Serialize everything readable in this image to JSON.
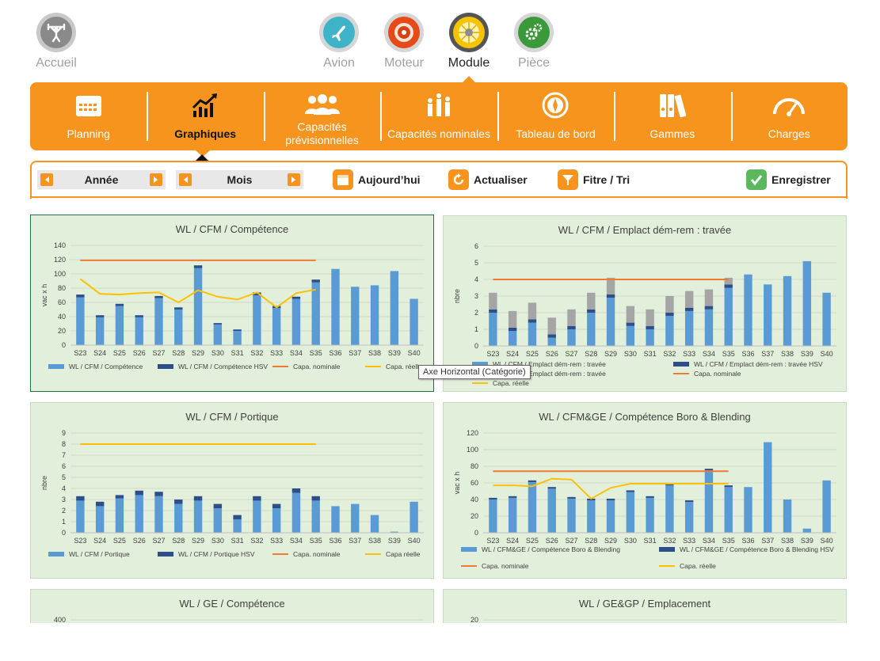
{
  "colors": {
    "accent": "#f7941d",
    "bar_main": "#5b9bd5",
    "bar_hsv": "#2e4e8a",
    "bar_grey": "#a5a5a5",
    "line_nominal": "#ed7d31",
    "line_reelle": "#ffc000",
    "panel_bg": "#e2efda"
  },
  "topnav": {
    "home": {
      "label": "Accueil",
      "icon": "dumbbell-icon"
    },
    "items": [
      {
        "label": "Avion",
        "icon": "airplane-icon",
        "active": false
      },
      {
        "label": "Moteur",
        "icon": "engine-icon",
        "active": false
      },
      {
        "label": "Module",
        "icon": "module-turbine-icon",
        "active": true
      },
      {
        "label": "Pièce",
        "icon": "gears-icon",
        "active": false
      }
    ]
  },
  "module_bar": {
    "items": [
      {
        "label": "Planning",
        "icon": "calendar-icon",
        "active": false
      },
      {
        "label": "Graphiques",
        "icon": "trend-chart-icon",
        "active": true
      },
      {
        "label": "Capacités prévisionnelles",
        "icon": "people-group-icon",
        "active": false
      },
      {
        "label": "Capacités nominales",
        "icon": "people-bar-icon",
        "active": false
      },
      {
        "label": "Tableau de bord",
        "icon": "compass-icon",
        "active": false
      },
      {
        "label": "Gammes",
        "icon": "binders-icon",
        "active": false
      },
      {
        "label": "Charges",
        "icon": "gauge-icon",
        "active": false
      }
    ]
  },
  "toolbar": {
    "year_label": "Année",
    "month_label": "Mois",
    "today_label": "Aujourd’hui",
    "refresh_label": "Actualiser",
    "filter_label": "Fitre / Tri",
    "save_label": "Enregistrer"
  },
  "tooltip": "Axe Horizontal (Catégorie)",
  "chart_data": [
    {
      "type": "bar",
      "title": "WL / CFM / Compétence",
      "ylabel": "vac x h",
      "ylim": [
        0,
        140
      ],
      "yticks": [
        0,
        20,
        40,
        60,
        80,
        100,
        120,
        140
      ],
      "categories": [
        "S23",
        "S24",
        "S25",
        "S26",
        "S27",
        "S28",
        "S29",
        "S30",
        "S31",
        "S32",
        "S33",
        "S34",
        "S35",
        "S36",
        "S37",
        "S38",
        "S39",
        "S40"
      ],
      "stacked": true,
      "series": [
        {
          "name": "WL / CFM / Compétence",
          "kind": "bar",
          "values": [
            67,
            39,
            55,
            39,
            66,
            50,
            108,
            29,
            20,
            70,
            52,
            65,
            88,
            107,
            82,
            84,
            104,
            65
          ]
        },
        {
          "name": "WL / CFM / Compétence HSV",
          "kind": "bar",
          "values": [
            4,
            3,
            3,
            3,
            3,
            3,
            4,
            2,
            2,
            4,
            3,
            3,
            4,
            0,
            0,
            0,
            0,
            0
          ]
        },
        {
          "name": "Capa. nominale",
          "kind": "line",
          "values": [
            119,
            119,
            119,
            119,
            119,
            119,
            119,
            119,
            119,
            119,
            119,
            119,
            119,
            null,
            null,
            null,
            null,
            null
          ]
        },
        {
          "name": "Capa. réelle",
          "kind": "line",
          "values": [
            93,
            72,
            71,
            73,
            74,
            60,
            77,
            68,
            64,
            74,
            53,
            73,
            78,
            null,
            null,
            null,
            null,
            null
          ]
        }
      ],
      "legend": [
        "WL / CFM / Compétence",
        "WL / CFM / Compétence HSV",
        "Capa. nominale",
        "Capa. réelle"
      ]
    },
    {
      "type": "bar",
      "title": "WL / CFM / Emplact dém-rem : travée",
      "ylabel": "nbre",
      "ylim": [
        0,
        6
      ],
      "yticks": [
        0,
        1,
        2,
        3,
        4,
        5,
        6
      ],
      "categories": [
        "S23",
        "S24",
        "S25",
        "S26",
        "S27",
        "S28",
        "S29",
        "S30",
        "S31",
        "S32",
        "S33",
        "S34",
        "S35",
        "S36",
        "S37",
        "S38",
        "S39",
        "S40"
      ],
      "stacked": true,
      "series": [
        {
          "name": "WL / CFM / Emplact dém-rem : travée",
          "kind": "bar",
          "values": [
            2.0,
            0.9,
            1.4,
            0.5,
            1.0,
            2.0,
            2.9,
            1.2,
            1.0,
            1.8,
            2.1,
            2.2,
            3.5,
            4.3,
            3.7,
            4.2,
            5.1,
            3.2
          ]
        },
        {
          "name": "WL / CFM / Emplact dém-rem : travée HSV",
          "kind": "bar",
          "values": [
            0.2,
            0.2,
            0.2,
            0.2,
            0.2,
            0.2,
            0.2,
            0.2,
            0.2,
            0.2,
            0.2,
            0.2,
            0.2,
            0,
            0,
            0,
            0,
            0
          ]
        },
        {
          "name": "",
          "kind": "bar",
          "values": [
            1.0,
            1.0,
            1.0,
            1.0,
            1.0,
            1.0,
            1.0,
            1.0,
            1.0,
            1.0,
            1.0,
            1.0,
            0.4,
            0,
            0,
            0,
            0,
            0
          ]
        },
        {
          "name": "Capa. nominale",
          "kind": "line",
          "values": [
            4,
            4,
            4,
            4,
            4,
            4,
            4,
            4,
            4,
            4,
            4,
            4,
            4,
            null,
            null,
            null,
            null,
            null
          ]
        },
        {
          "name": "Capa. réelle",
          "kind": "line",
          "values": [
            null,
            null,
            null,
            null,
            null,
            null,
            null,
            null,
            null,
            null,
            null,
            null,
            null,
            null,
            null,
            null,
            null,
            null
          ]
        }
      ],
      "legend": [
        "WL / CFM / Emplact dém-rem : travée",
        "WL / CFM / Emplact dém-rem : travée HSV",
        "WL / CFM / Emplact dém-rem : travée",
        "Capa. nominale",
        "Capa. réelle"
      ]
    },
    {
      "type": "bar",
      "title": "WL / CFM / Portique",
      "ylabel": "nbre",
      "ylim": [
        0,
        9
      ],
      "yticks": [
        0,
        1,
        2,
        3,
        4,
        5,
        6,
        7,
        8,
        9
      ],
      "categories": [
        "S23",
        "S24",
        "S25",
        "S26",
        "S27",
        "S28",
        "S29",
        "S30",
        "S31",
        "S32",
        "S33",
        "S34",
        "S35",
        "S36",
        "S37",
        "S38",
        "S39",
        "S40"
      ],
      "stacked": true,
      "series": [
        {
          "name": "WL / CFM / Portique",
          "kind": "bar",
          "values": [
            2.9,
            2.4,
            3.1,
            3.4,
            3.3,
            2.6,
            2.9,
            2.2,
            1.2,
            2.9,
            2.2,
            3.6,
            2.9,
            2.4,
            2.6,
            1.6,
            0.1,
            2.8
          ]
        },
        {
          "name": "WL / CFM / Portique HSV",
          "kind": "bar",
          "values": [
            0.4,
            0.4,
            0.3,
            0.4,
            0.4,
            0.4,
            0.4,
            0.4,
            0.4,
            0.4,
            0.4,
            0.4,
            0.4,
            0,
            0,
            0,
            0,
            0
          ]
        },
        {
          "name": "Capa. nominale",
          "kind": "line",
          "values": [
            null,
            null,
            null,
            null,
            null,
            null,
            null,
            null,
            null,
            null,
            null,
            null,
            null,
            null,
            null,
            null,
            null,
            null
          ]
        },
        {
          "name": "Capa réelle",
          "kind": "line",
          "values": [
            8,
            8,
            8,
            8,
            8,
            8,
            8,
            8,
            8,
            8,
            8,
            8,
            8,
            null,
            null,
            null,
            null,
            null
          ]
        }
      ],
      "legend": [
        "WL / CFM / Portique",
        "WL / CFM / Portique HSV",
        "Capa. nominale",
        "Capa réelle"
      ]
    },
    {
      "type": "bar",
      "title": "WL / CFM&GE / Compétence Boro & Blending",
      "ylabel": "vac x h",
      "ylim": [
        0,
        120
      ],
      "yticks": [
        0,
        20,
        40,
        60,
        80,
        100,
        120
      ],
      "categories": [
        "S23",
        "S24",
        "S25",
        "S26",
        "S27",
        "S28",
        "S29",
        "S30",
        "S31",
        "S32",
        "S33",
        "S34",
        "S35",
        "S36",
        "S37",
        "S38",
        "S39",
        "S40"
      ],
      "stacked": true,
      "series": [
        {
          "name": "WL / CFM&GE / Compétence Boro & Blending",
          "kind": "bar",
          "values": [
            40,
            42,
            61,
            53,
            41,
            39,
            39,
            49,
            42,
            57,
            37,
            75,
            55,
            55,
            109,
            40,
            5,
            63
          ]
        },
        {
          "name": "WL / CFM&GE / Compétence Boro & Blending HSV",
          "kind": "bar",
          "values": [
            2,
            2,
            2,
            2,
            2,
            2,
            2,
            2,
            2,
            2,
            2,
            2,
            2,
            0,
            0,
            0,
            0,
            0
          ]
        },
        {
          "name": "Capa. nominale",
          "kind": "line",
          "values": [
            74,
            74,
            74,
            74,
            74,
            74,
            74,
            74,
            74,
            74,
            74,
            74,
            74,
            null,
            null,
            null,
            null,
            null
          ]
        },
        {
          "name": "Capa. réelle",
          "kind": "line",
          "values": [
            57,
            57,
            56,
            65,
            64,
            41,
            54,
            59,
            59,
            59,
            59,
            59,
            59,
            null,
            null,
            null,
            null,
            null
          ]
        }
      ],
      "legend": [
        "WL / CFM&GE / Compétence Boro & Blending",
        "WL / CFM&GE / Compétence Boro & Blending HSV",
        "Capa. nominale",
        "Capa. réelle"
      ]
    },
    {
      "type": "bar",
      "title": "WL / GE / Compétence",
      "ylabel": "",
      "ylim": [
        0,
        400
      ],
      "yticks": [
        400
      ],
      "categories": [],
      "series": [],
      "legend": []
    },
    {
      "type": "bar",
      "title": "WL / GE&GP / Emplacement",
      "ylabel": "",
      "ylim": [
        0,
        20
      ],
      "yticks": [
        20
      ],
      "categories": [],
      "series": [],
      "legend": []
    }
  ]
}
